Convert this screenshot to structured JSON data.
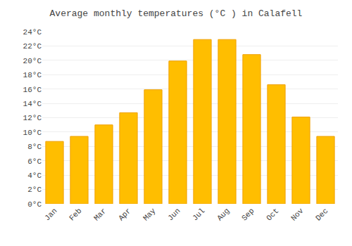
{
  "chart_data": {
    "type": "bar",
    "title": "Average monthly temperatures (°C ) in Calafell",
    "categories": [
      "Jan",
      "Feb",
      "Mar",
      "Apr",
      "May",
      "Jun",
      "Jul",
      "Aug",
      "Sep",
      "Oct",
      "Nov",
      "Dec"
    ],
    "values": [
      8.7,
      9.4,
      11.0,
      12.7,
      15.9,
      19.9,
      22.9,
      22.9,
      20.8,
      16.6,
      12.1,
      9.4
    ],
    "color": "#FFBE00",
    "ylim": [
      0,
      24
    ],
    "yticks": [
      {
        "value": 0,
        "label": "0°C"
      },
      {
        "value": 2,
        "label": "2°C"
      },
      {
        "value": 4,
        "label": "4°C"
      },
      {
        "value": 6,
        "label": "6°C"
      },
      {
        "value": 8,
        "label": "8°C"
      },
      {
        "value": 10,
        "label": "10°C"
      },
      {
        "value": 12,
        "label": "12°C"
      },
      {
        "value": 14,
        "label": "14°C"
      },
      {
        "value": 16,
        "label": "16°C"
      },
      {
        "value": 18,
        "label": "18°C"
      },
      {
        "value": 20,
        "label": "20°C"
      },
      {
        "value": 22,
        "label": "22°C"
      },
      {
        "value": 24,
        "label": "24°C"
      }
    ],
    "grid": true
  }
}
